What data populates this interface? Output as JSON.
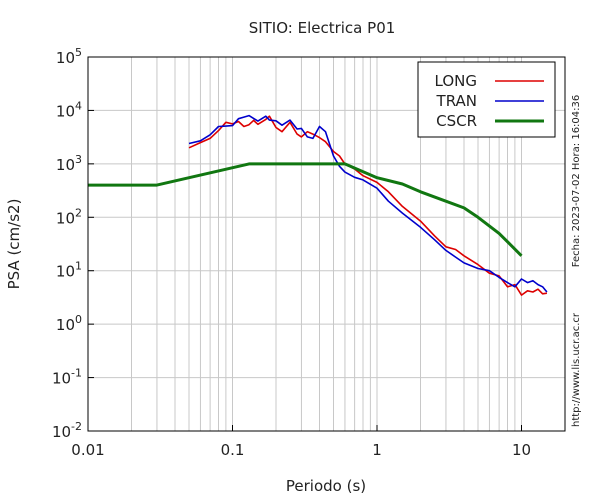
{
  "chart_data": {
    "type": "line",
    "title": "SITIO: Electrica P01",
    "xlabel": "Periodo (s)",
    "ylabel": "PSA (cm/s2)",
    "x_scale": "log",
    "y_scale": "log",
    "xlim": [
      0.01,
      20
    ],
    "ylim": [
      0.01,
      100000
    ],
    "grid": true,
    "legend_position": "top-right",
    "x_ticks": [
      {
        "value": 0.01,
        "label": "0.01"
      },
      {
        "value": 0.1,
        "label": "0.1"
      },
      {
        "value": 1,
        "label": "1"
      },
      {
        "value": 10,
        "label": "10"
      }
    ],
    "y_ticks": [
      {
        "value": 0.01,
        "base": "10",
        "exp": "-2"
      },
      {
        "value": 0.1,
        "base": "10",
        "exp": "-1"
      },
      {
        "value": 1,
        "base": "10",
        "exp": "0"
      },
      {
        "value": 10,
        "base": "10",
        "exp": "1"
      },
      {
        "value": 100,
        "base": "10",
        "exp": "2"
      },
      {
        "value": 1000,
        "base": "10",
        "exp": "3"
      },
      {
        "value": 10000,
        "base": "10",
        "exp": "4"
      },
      {
        "value": 100000,
        "base": "10",
        "exp": "5"
      }
    ],
    "series": [
      {
        "name": "LONG",
        "color": "#dd0000",
        "x": [
          0.05,
          0.06,
          0.07,
          0.08,
          0.09,
          0.1,
          0.11,
          0.12,
          0.13,
          0.14,
          0.15,
          0.17,
          0.18,
          0.2,
          0.22,
          0.25,
          0.28,
          0.3,
          0.33,
          0.36,
          0.4,
          0.44,
          0.5,
          0.55,
          0.6,
          0.7,
          0.8,
          1,
          1.2,
          1.5,
          2,
          2.5,
          3,
          3.5,
          4,
          5,
          6,
          7,
          8,
          9,
          10,
          11,
          12,
          13,
          14,
          15
        ],
        "y": [
          2000,
          2500,
          3000,
          4200,
          6000,
          5600,
          6200,
          5000,
          5400,
          6500,
          5500,
          6800,
          7800,
          4800,
          4000,
          6000,
          3600,
          3200,
          4000,
          3600,
          3100,
          2600,
          1700,
          1400,
          1000,
          800,
          600,
          450,
          300,
          160,
          85,
          45,
          28,
          25,
          19,
          13,
          9,
          8,
          5,
          5.5,
          3.5,
          4.2,
          4,
          4.5,
          3.7,
          3.8
        ]
      },
      {
        "name": "TRAN",
        "color": "#0000cc",
        "x": [
          0.05,
          0.06,
          0.07,
          0.08,
          0.09,
          0.1,
          0.11,
          0.12,
          0.13,
          0.14,
          0.15,
          0.17,
          0.18,
          0.2,
          0.22,
          0.25,
          0.28,
          0.3,
          0.33,
          0.36,
          0.4,
          0.44,
          0.5,
          0.55,
          0.6,
          0.7,
          0.8,
          1,
          1.2,
          1.5,
          2,
          2.5,
          3,
          3.5,
          4,
          5,
          6,
          7,
          8,
          9,
          10,
          11,
          12,
          13,
          14,
          15
        ],
        "y": [
          2400,
          2700,
          3500,
          5000,
          5100,
          5200,
          7000,
          7500,
          8000,
          7100,
          6300,
          7800,
          6600,
          6400,
          5300,
          6600,
          4500,
          4600,
          3200,
          3000,
          5000,
          4000,
          1400,
          900,
          700,
          560,
          500,
          350,
          200,
          120,
          65,
          38,
          24,
          18,
          14,
          11,
          10,
          7.5,
          6,
          5,
          7,
          6,
          6.5,
          5.5,
          5,
          4
        ]
      },
      {
        "name": "CSCR",
        "color": "#117711",
        "x": [
          0.01,
          0.03,
          0.13,
          0.6,
          1,
          1.5,
          2,
          3,
          4,
          5,
          7,
          10
        ],
        "y": [
          400,
          400,
          1000,
          1000,
          550,
          420,
          300,
          200,
          150,
          100,
          50,
          19
        ]
      }
    ]
  },
  "side_labels": {
    "timestamp": "Fecha: 2023-07-02  Hora: 16:04:36",
    "website": "http://www.lis.ucr.ac.cr"
  }
}
